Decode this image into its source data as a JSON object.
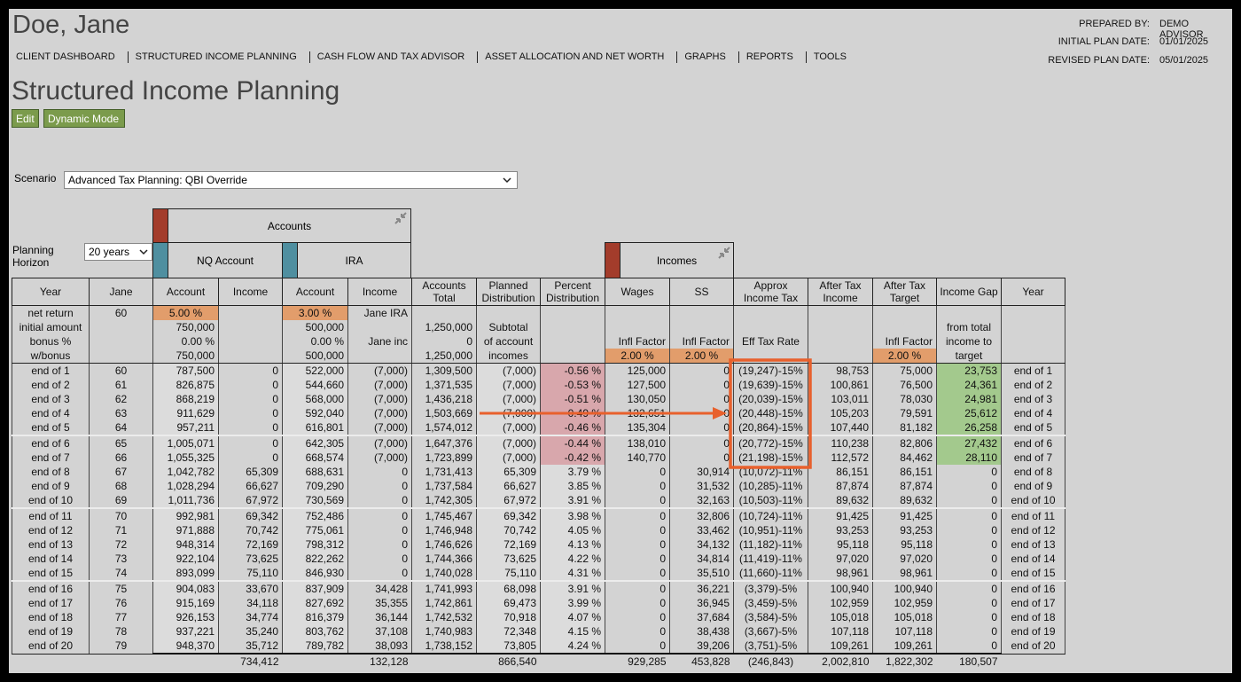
{
  "header": {
    "client_name": "Doe, Jane",
    "prepared_by": {
      "label": "PREPARED BY:",
      "value": "DEMO ADVISOR"
    },
    "initial_plan_date": {
      "label": "INITIAL PLAN DATE:",
      "value": "01/01/2025"
    },
    "revised_plan_date": {
      "label": "REVISED PLAN DATE:",
      "value": "05/01/2025"
    }
  },
  "nav": [
    "CLIENT DASHBOARD",
    "STRUCTURED INCOME PLANNING",
    "CASH FLOW AND TAX ADVISOR",
    "ASSET ALLOCATION AND NET WORTH",
    "GRAPHS",
    "REPORTS",
    "TOOLS"
  ],
  "page_title": "Structured Income Planning",
  "buttons": [
    "Edit",
    "Dynamic Mode"
  ],
  "scenario": {
    "label": "Scenario",
    "value": "Advanced Tax Planning: QBI Override"
  },
  "planning_horizon": {
    "label": "Planning Horizon",
    "value": "20 years"
  },
  "groups": {
    "accounts": "Accounts",
    "nq_account": "NQ Account",
    "ira": "IRA",
    "incomes": "Incomes"
  },
  "table": {
    "columns": [
      "Year",
      "Jane",
      "Account",
      "Income",
      "Account",
      "Income",
      "Accounts Total",
      "Planned Distribution",
      "Percent Distribution",
      "Wages",
      "SS",
      "Approx Income Tax",
      "After Tax Income",
      "After Tax Target",
      "Income Gap",
      "Year"
    ],
    "setup_rows": [
      [
        "net return",
        "60",
        "5.00 %",
        null,
        "3.00 %",
        "Jane IRA",
        null,
        null,
        null,
        null,
        null,
        null,
        null,
        null,
        null,
        null
      ],
      [
        "initial amount",
        null,
        "750,000",
        null,
        "500,000",
        null,
        "1,250,000",
        "Subtotal",
        null,
        null,
        null,
        null,
        null,
        null,
        "from total",
        null
      ],
      [
        "bonus %",
        null,
        "0.00 %",
        null,
        "0.00 %",
        "Jane inc",
        "0",
        "of account",
        null,
        "Infl Factor",
        "Infl Factor",
        "Eff Tax Rate",
        null,
        "Infl Factor",
        "income to",
        null
      ],
      [
        "w/bonus",
        null,
        "750,000",
        null,
        "500,000",
        null,
        "1,250,000",
        "incomes",
        null,
        "2.00 %",
        "2.00 %",
        null,
        null,
        "2.00 %",
        "target",
        null
      ]
    ],
    "rows": [
      [
        "end of 1",
        "60",
        "787,500",
        "0",
        "522,000",
        "(7,000)",
        "1,309,500",
        "(7,000)",
        "-0.56 %",
        "125,000",
        "0",
        "(19,247)-15%",
        "98,753",
        "75,000",
        "23,753",
        "end of 1"
      ],
      [
        "end of 2",
        "61",
        "826,875",
        "0",
        "544,660",
        "(7,000)",
        "1,371,535",
        "(7,000)",
        "-0.53 %",
        "127,500",
        "0",
        "(19,639)-15%",
        "100,861",
        "76,500",
        "24,361",
        "end of 2"
      ],
      [
        "end of 3",
        "62",
        "868,219",
        "0",
        "568,000",
        "(7,000)",
        "1,436,218",
        "(7,000)",
        "-0.51 %",
        "130,050",
        "0",
        "(20,039)-15%",
        "103,011",
        "78,030",
        "24,981",
        "end of 3"
      ],
      [
        "end of 4",
        "63",
        "911,629",
        "0",
        "592,040",
        "(7,000)",
        "1,503,669",
        "(7,000)",
        "-0.49 %",
        "132,651",
        "0",
        "(20,448)-15%",
        "105,203",
        "79,591",
        "25,612",
        "end of 4"
      ],
      [
        "end of 5",
        "64",
        "957,211",
        "0",
        "616,801",
        "(7,000)",
        "1,574,012",
        "(7,000)",
        "-0.46 %",
        "135,304",
        "0",
        "(20,864)-15%",
        "107,440",
        "81,182",
        "26,258",
        "end of 5"
      ],
      [
        "end of 6",
        "65",
        "1,005,071",
        "0",
        "642,305",
        "(7,000)",
        "1,647,376",
        "(7,000)",
        "-0.44 %",
        "138,010",
        "0",
        "(20,772)-15%",
        "110,238",
        "82,806",
        "27,432",
        "end of 6"
      ],
      [
        "end of 7",
        "66",
        "1,055,325",
        "0",
        "668,574",
        "(7,000)",
        "1,723,899",
        "(7,000)",
        "-0.42 %",
        "140,770",
        "0",
        "(21,198)-15%",
        "112,572",
        "84,462",
        "28,110",
        "end of 7"
      ],
      [
        "end of 8",
        "67",
        "1,042,782",
        "65,309",
        "688,631",
        "0",
        "1,731,413",
        "65,309",
        "3.79 %",
        "0",
        "30,914",
        "(10,072)-11%",
        "86,151",
        "86,151",
        "0",
        "end of 8"
      ],
      [
        "end of 9",
        "68",
        "1,028,294",
        "66,627",
        "709,290",
        "0",
        "1,737,584",
        "66,627",
        "3.85 %",
        "0",
        "31,532",
        "(10,285)-11%",
        "87,874",
        "87,874",
        "0",
        "end of 9"
      ],
      [
        "end of 10",
        "69",
        "1,011,736",
        "67,972",
        "730,569",
        "0",
        "1,742,305",
        "67,972",
        "3.91 %",
        "0",
        "32,163",
        "(10,503)-11%",
        "89,632",
        "89,632",
        "0",
        "end of 10"
      ],
      [
        "end of 11",
        "70",
        "992,981",
        "69,342",
        "752,486",
        "0",
        "1,745,467",
        "69,342",
        "3.98 %",
        "0",
        "32,806",
        "(10,724)-11%",
        "91,425",
        "91,425",
        "0",
        "end of 11"
      ],
      [
        "end of 12",
        "71",
        "971,888",
        "70,742",
        "775,061",
        "0",
        "1,746,948",
        "70,742",
        "4.05 %",
        "0",
        "33,462",
        "(10,951)-11%",
        "93,253",
        "93,253",
        "0",
        "end of 12"
      ],
      [
        "end of 13",
        "72",
        "948,314",
        "72,169",
        "798,312",
        "0",
        "1,746,626",
        "72,169",
        "4.13 %",
        "0",
        "34,132",
        "(11,182)-11%",
        "95,118",
        "95,118",
        "0",
        "end of 13"
      ],
      [
        "end of 14",
        "73",
        "922,104",
        "73,625",
        "822,262",
        "0",
        "1,744,366",
        "73,625",
        "4.22 %",
        "0",
        "34,814",
        "(11,419)-11%",
        "97,020",
        "97,020",
        "0",
        "end of 14"
      ],
      [
        "end of 15",
        "74",
        "893,099",
        "75,110",
        "846,930",
        "0",
        "1,740,028",
        "75,110",
        "4.31 %",
        "0",
        "35,510",
        "(11,660)-11%",
        "98,961",
        "98,961",
        "0",
        "end of 15"
      ],
      [
        "end of 16",
        "75",
        "904,083",
        "33,670",
        "837,909",
        "34,428",
        "1,741,993",
        "68,098",
        "3.91 %",
        "0",
        "36,221",
        "(3,379)-5%",
        "100,940",
        "100,940",
        "0",
        "end of 16"
      ],
      [
        "end of 17",
        "76",
        "915,169",
        "34,118",
        "827,692",
        "35,355",
        "1,742,861",
        "69,473",
        "3.99 %",
        "0",
        "36,945",
        "(3,459)-5%",
        "102,959",
        "102,959",
        "0",
        "end of 17"
      ],
      [
        "end of 18",
        "77",
        "926,153",
        "34,774",
        "816,379",
        "36,144",
        "1,742,532",
        "70,918",
        "4.07 %",
        "0",
        "37,684",
        "(3,584)-5%",
        "105,018",
        "105,018",
        "0",
        "end of 18"
      ],
      [
        "end of 19",
        "78",
        "937,221",
        "35,240",
        "803,762",
        "37,108",
        "1,740,983",
        "72,348",
        "4.15 %",
        "0",
        "38,438",
        "(3,667)-5%",
        "107,118",
        "107,118",
        "0",
        "end of 19"
      ],
      [
        "end of 20",
        "79",
        "948,370",
        "35,712",
        "789,782",
        "38,093",
        "1,738,152",
        "73,805",
        "4.24 %",
        "0",
        "39,206",
        "(3,751)-5%",
        "109,261",
        "109,261",
        "0",
        "end of 20"
      ]
    ],
    "totals": [
      null,
      null,
      null,
      "734,412",
      null,
      "132,128",
      null,
      "866,540",
      null,
      "929,285",
      "453,828",
      "(246,843)",
      "2,002,810",
      "1,822,302",
      "180,507",
      null
    ]
  }
}
